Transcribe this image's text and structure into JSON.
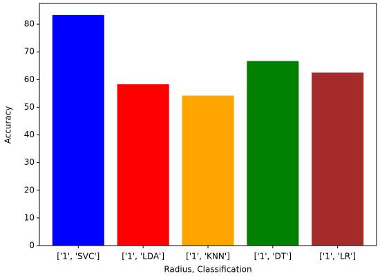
{
  "chart_data": {
    "type": "bar",
    "x_label": "Radius, Classification",
    "y_label": "Accuracy",
    "categories": [
      "['1', 'SVC']",
      "['1', 'LDA']",
      "['1', 'KNN']",
      "['1', 'DT']",
      "['1', 'LR']"
    ],
    "values": [
      83.3,
      58.3,
      54.2,
      66.7,
      62.5
    ],
    "colors": [
      "#0000ff",
      "#ff0000",
      "#ffa500",
      "#008000",
      "#a52a2a"
    ],
    "ylim": [
      0,
      87.5
    ],
    "yticks": [
      0,
      10,
      20,
      30,
      40,
      50,
      60,
      70,
      80
    ],
    "grid": false
  }
}
